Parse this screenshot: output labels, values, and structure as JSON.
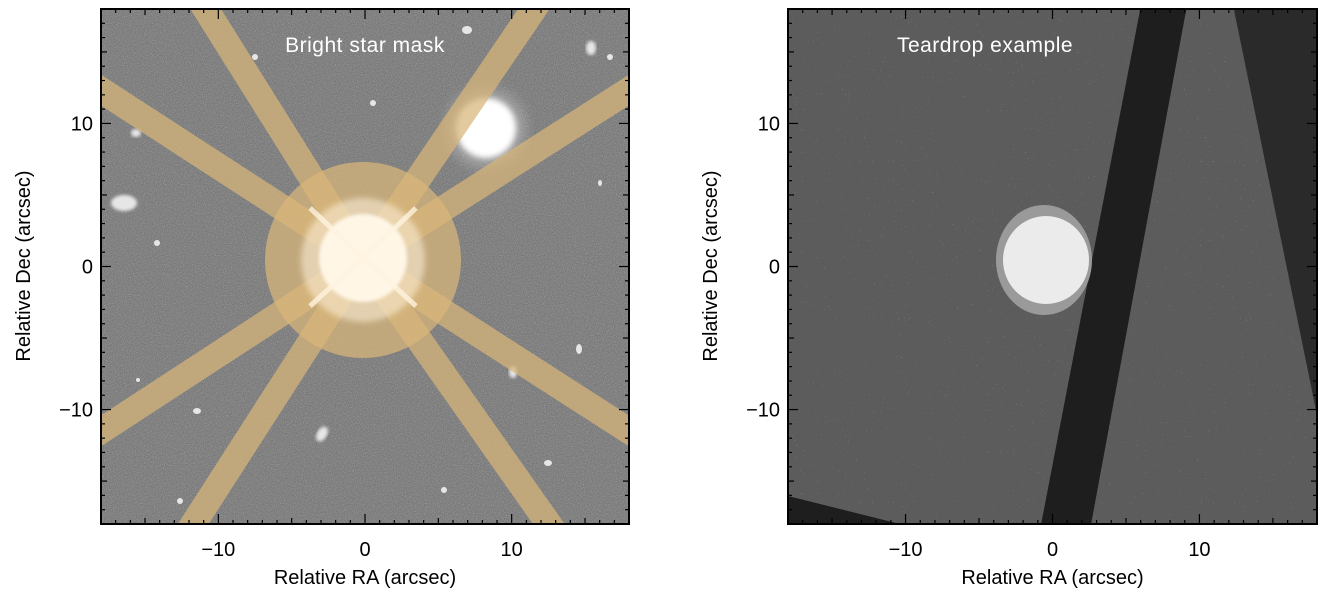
{
  "panels": [
    {
      "title": "Bright star mask",
      "xlabel": "Relative RA (arcsec)",
      "ylabel": "Relative Dec (arcsec)",
      "xlim": [
        -18,
        18
      ],
      "ylim": [
        -18,
        18
      ],
      "xticks": [
        {
          "v": -10,
          "label": "−10"
        },
        {
          "v": 0,
          "label": "0"
        },
        {
          "v": 10,
          "label": "10"
        }
      ],
      "yticks": [
        {
          "v": -10,
          "label": "−10"
        },
        {
          "v": 0,
          "label": "0"
        },
        {
          "v": 10,
          "label": "10"
        }
      ],
      "mask_color": "#d9b77a",
      "background_color": "#7a7a7a"
    },
    {
      "title": "Teardrop example",
      "xlabel": "Relative RA (arcsec)",
      "ylabel": "Relative Dec (arcsec)",
      "xlim": [
        -18,
        18
      ],
      "ylim": [
        -18,
        18
      ],
      "xticks": [
        {
          "v": -10,
          "label": "−10"
        },
        {
          "v": 0,
          "label": "0"
        },
        {
          "v": 10,
          "label": "10"
        }
      ],
      "yticks": [
        {
          "v": -10,
          "label": "−10"
        },
        {
          "v": 0,
          "label": "0"
        },
        {
          "v": 10,
          "label": "10"
        }
      ],
      "background_color": "#5c5c5c"
    }
  ]
}
